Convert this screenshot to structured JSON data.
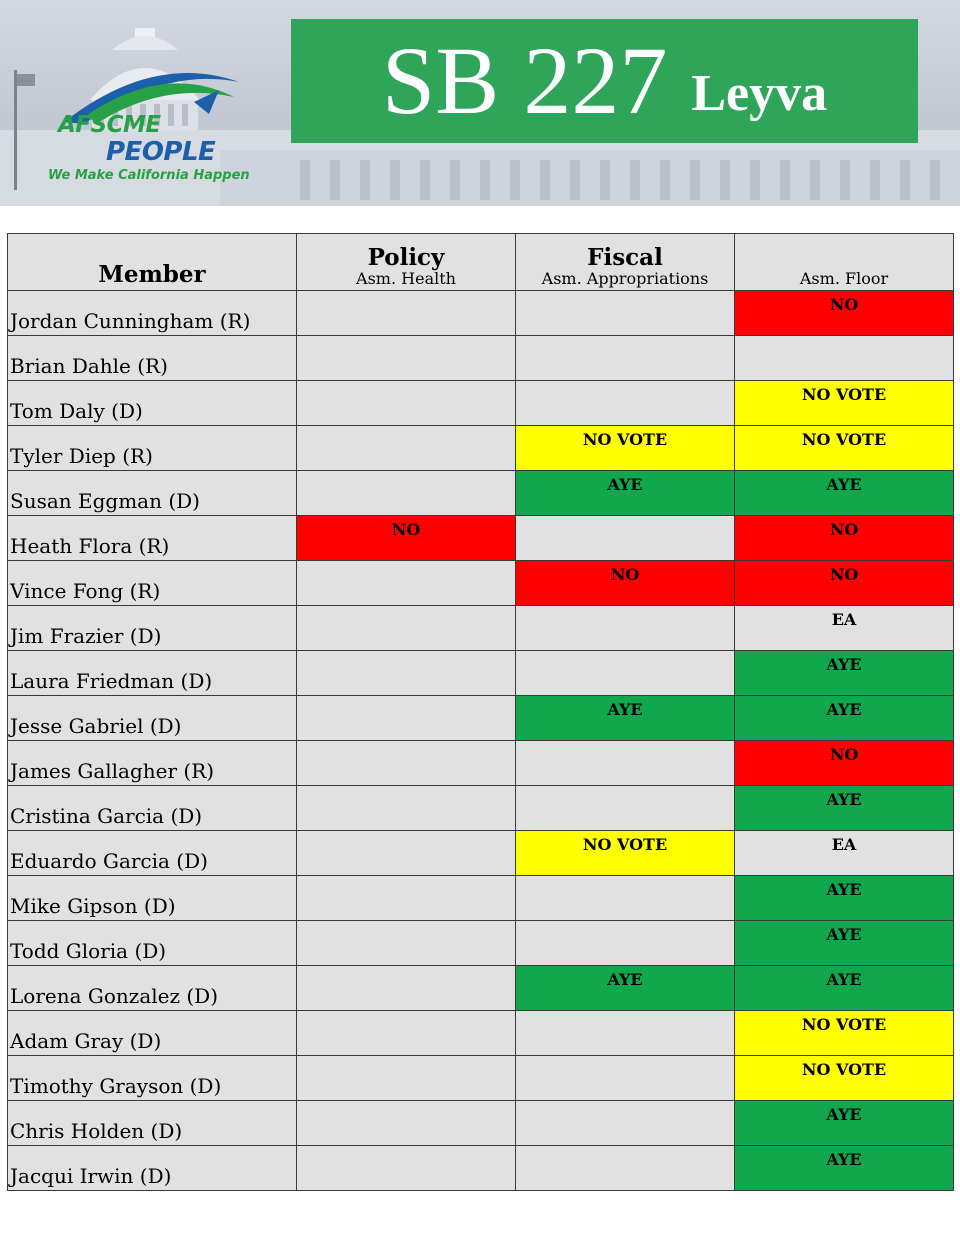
{
  "header": {
    "bill": "SB 227",
    "author": "Leyva",
    "logo": {
      "line1": "AFSCME",
      "line2": "PEOPLE",
      "tagline": "We Make California Happen"
    },
    "colors": {
      "banner": "#2fa55a",
      "logo_green": "#27a146",
      "logo_blue": "#1c5fab"
    }
  },
  "table": {
    "columns": [
      {
        "title": "Member",
        "subtitle": ""
      },
      {
        "title": "Policy",
        "subtitle": "Asm. Health"
      },
      {
        "title": "Fiscal",
        "subtitle": "Asm. Appropriations"
      },
      {
        "title": "",
        "subtitle": "Asm. Floor"
      }
    ],
    "status_colors": {
      "AYE": "#11a74d",
      "NO": "#ff0000",
      "NO VOTE": "#ffff00",
      "EA": "#e1e1e1",
      "": "#e1e1e1"
    },
    "rows": [
      {
        "member": "Jordan Cunningham (R)",
        "policy": "",
        "fiscal": "",
        "floor": "NO"
      },
      {
        "member": "Brian Dahle (R)",
        "policy": "",
        "fiscal": "",
        "floor": ""
      },
      {
        "member": "Tom Daly (D)",
        "policy": "",
        "fiscal": "",
        "floor": "NO VOTE"
      },
      {
        "member": "Tyler Diep (R)",
        "policy": "",
        "fiscal": "NO VOTE",
        "floor": "NO VOTE"
      },
      {
        "member": "Susan Eggman (D)",
        "policy": "",
        "fiscal": "AYE",
        "floor": "AYE"
      },
      {
        "member": "Heath Flora (R)",
        "policy": "NO",
        "fiscal": "",
        "floor": "NO"
      },
      {
        "member": "Vince Fong (R)",
        "policy": "",
        "fiscal": "NO",
        "floor": "NO"
      },
      {
        "member": "Jim Frazier (D)",
        "policy": "",
        "fiscal": "",
        "floor": "EA"
      },
      {
        "member": "Laura Friedman (D)",
        "policy": "",
        "fiscal": "",
        "floor": "AYE"
      },
      {
        "member": "Jesse Gabriel (D)",
        "policy": "",
        "fiscal": "AYE",
        "floor": "AYE"
      },
      {
        "member": "James Gallagher (R)",
        "policy": "",
        "fiscal": "",
        "floor": "NO"
      },
      {
        "member": "Cristina Garcia (D)",
        "policy": "",
        "fiscal": "",
        "floor": "AYE"
      },
      {
        "member": "Eduardo Garcia (D)",
        "policy": "",
        "fiscal": "NO VOTE",
        "floor": "EA"
      },
      {
        "member": "Mike Gipson (D)",
        "policy": "",
        "fiscal": "",
        "floor": "AYE"
      },
      {
        "member": "Todd Gloria (D)",
        "policy": "",
        "fiscal": "",
        "floor": "AYE"
      },
      {
        "member": "Lorena Gonzalez (D)",
        "policy": "",
        "fiscal": "AYE",
        "floor": "AYE"
      },
      {
        "member": "Adam Gray (D)",
        "policy": "",
        "fiscal": "",
        "floor": "NO VOTE"
      },
      {
        "member": "Timothy Grayson (D)",
        "policy": "",
        "fiscal": "",
        "floor": "NO VOTE"
      },
      {
        "member": "Chris Holden (D)",
        "policy": "",
        "fiscal": "",
        "floor": "AYE"
      },
      {
        "member": "Jacqui Irwin (D)",
        "policy": "",
        "fiscal": "",
        "floor": "AYE"
      }
    ]
  }
}
